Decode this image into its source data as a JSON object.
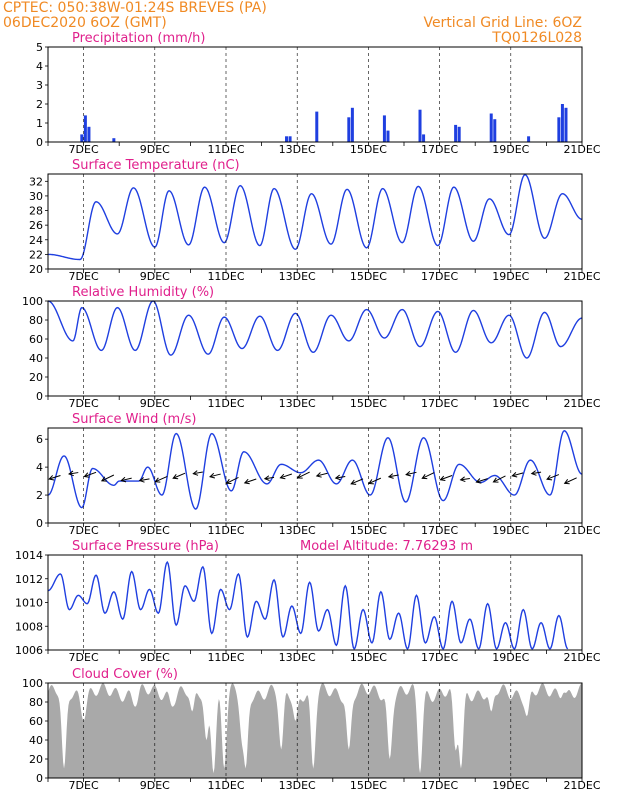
{
  "header": {
    "line1_left": "CPTEC:  050:38W-01:24S  BREVES (PA)",
    "line2_left": "06DEC2020 6OZ (GMT)",
    "line1_right": "Vertical Grid Line: 6OZ",
    "line2_right": "TQ0126L028"
  },
  "model_altitude": "Model Altitude: 7.76293 m",
  "colors": {
    "header": "#f08a24",
    "title": "#e0208c",
    "line": "#1f3fe0",
    "cloud": "#a9a9a9"
  },
  "date_labels": [
    "7DEC",
    "9DEC",
    "11DEC",
    "13DEC",
    "15DEC",
    "17DEC",
    "19DEC",
    "21DEC"
  ],
  "chart_data": [
    {
      "type": "bar",
      "title": "Precipitation (mm/h)",
      "y_ticks": [
        "0",
        "1",
        "2",
        "3",
        "4",
        "5"
      ],
      "ylim": [
        0,
        5
      ],
      "x_range": [
        "06DEC2020 06Z",
        "21DEC2020 06Z"
      ],
      "series": [
        {
          "x": [
            0.95,
            1.05,
            1.15,
            1.85,
            6.7,
            6.8,
            7.55,
            8.45,
            8.55,
            9.45,
            9.55,
            10.45,
            10.55,
            11.45,
            11.55,
            12.45,
            12.55,
            13.5,
            14.35,
            14.45,
            14.55
          ],
          "values": [
            0.4,
            1.4,
            0.8,
            0.2,
            0.3,
            0.3,
            1.6,
            1.3,
            1.8,
            1.4,
            0.6,
            1.7,
            0.4,
            0.9,
            0.8,
            1.5,
            1.2,
            0.3,
            1.3,
            2.0,
            1.8
          ]
        }
      ]
    },
    {
      "type": "line",
      "title": "Surface Temperature (nC)",
      "y_ticks": [
        "20",
        "22",
        "24",
        "26",
        "28",
        "30",
        "32"
      ],
      "ylim": [
        20,
        33
      ],
      "x_range": [
        "06DEC2020 06Z",
        "21DEC2020 06Z"
      ],
      "series": [
        {
          "peak_times": [
            1.35,
            2.4,
            3.4,
            4.4,
            5.4,
            6.35,
            7.4,
            8.4,
            9.4,
            10.4,
            11.4,
            12.4,
            13.4,
            14.45
          ],
          "peak_values": [
            29.2,
            31.1,
            30.7,
            31.2,
            31.4,
            31.0,
            30.3,
            30.9,
            31.0,
            31.3,
            31.2,
            29.6,
            32.9,
            30.3
          ],
          "trough_times": [
            0.0,
            0.9,
            1.95,
            3.0,
            3.95,
            4.95,
            5.95,
            6.95,
            7.95,
            8.95,
            9.95,
            10.95,
            11.95,
            12.95,
            13.95,
            15.0
          ],
          "trough_values": [
            22.0,
            21.3,
            24.8,
            23.0,
            23.3,
            23.6,
            23.2,
            22.7,
            23.4,
            22.9,
            23.6,
            23.2,
            23.8,
            24.7,
            24.2,
            26.8
          ]
        }
      ]
    },
    {
      "type": "line",
      "title": "Relative Humidity (%)",
      "y_ticks": [
        "0",
        "20",
        "40",
        "60",
        "80",
        "100"
      ],
      "ylim": [
        0,
        100
      ],
      "x_range": [
        "06DEC2020 06Z",
        "21DEC2020 06Z"
      ],
      "series": [
        {
          "peak_times": [
            0.0,
            0.95,
            1.95,
            2.95,
            3.95,
            4.95,
            5.95,
            6.95,
            7.95,
            8.95,
            9.95,
            10.95,
            11.95,
            12.95,
            13.95,
            15.0
          ],
          "peak_values": [
            100,
            93,
            93,
            100,
            85,
            83,
            84,
            87,
            85,
            91,
            91,
            89,
            90,
            85,
            88,
            82
          ],
          "trough_times": [
            0.7,
            1.5,
            2.45,
            3.45,
            4.5,
            5.45,
            6.45,
            7.45,
            8.45,
            9.45,
            10.45,
            11.45,
            12.45,
            13.45,
            14.4
          ],
          "trough_values": [
            58,
            48,
            48,
            43,
            44,
            50,
            48,
            46,
            58,
            61,
            52,
            46,
            56,
            40,
            52
          ]
        }
      ]
    },
    {
      "type": "line",
      "title": "Surface Wind (m/s)",
      "y_ticks": [
        "0",
        "2",
        "4",
        "6"
      ],
      "ylim": [
        0,
        6.8
      ],
      "x_range": [
        "06DEC2020 06Z",
        "21DEC2020 06Z"
      ],
      "series": [
        {
          "peak_times": [
            0.45,
            1.25,
            2.0,
            2.8,
            3.6,
            4.6,
            5.5,
            6.55,
            7.6,
            8.55,
            9.55,
            10.55,
            11.55,
            12.55,
            13.55,
            14.5
          ],
          "peak_values": [
            4.8,
            3.9,
            3.0,
            4.0,
            6.4,
            6.4,
            5.1,
            4.2,
            4.5,
            4.5,
            6.1,
            6.1,
            4.2,
            3.4,
            4.5,
            6.6
          ],
          "trough_times": [
            0.0,
            0.95,
            1.85,
            2.55,
            3.2,
            4.15,
            5.15,
            6.15,
            7.1,
            8.1,
            9.05,
            10.05,
            11.1,
            12.15,
            13.1,
            14.1,
            15.0
          ],
          "trough_values": [
            2.0,
            1.1,
            2.7,
            3.0,
            2.0,
            1.0,
            2.3,
            2.8,
            3.6,
            2.8,
            2.0,
            1.5,
            1.6,
            2.9,
            2.0,
            2.0,
            3.5
          ]
        }
      ]
    },
    {
      "type": "line",
      "title": "Surface Pressure (hPa)",
      "y_ticks": [
        "1006",
        "1008",
        "1010",
        "1012",
        "1014"
      ],
      "ylim": [
        1006,
        1014
      ],
      "x_range": [
        "06DEC2020 06Z",
        "21DEC2020 06Z"
      ],
      "series": [
        {
          "peak_times": [
            0.35,
            0.85,
            1.35,
            1.85,
            2.35,
            2.85,
            3.35,
            3.85,
            4.35,
            4.85,
            5.35,
            5.85,
            6.35,
            6.85,
            7.35,
            7.85,
            8.35,
            8.85,
            9.35,
            9.85,
            10.35,
            10.85,
            11.35,
            11.85,
            12.35,
            12.85,
            13.35,
            13.85,
            14.35
          ],
          "peak_values": [
            1012.4,
            1010.6,
            1012.3,
            1010.9,
            1012.6,
            1011.1,
            1013.4,
            1011.4,
            1013.0,
            1011.1,
            1012.4,
            1010.1,
            1011.9,
            1009.7,
            1011.7,
            1009.4,
            1011.4,
            1009.4,
            1010.9,
            1009.1,
            1010.6,
            1008.8,
            1010.1,
            1008.6,
            1009.9,
            1008.3,
            1009.4,
            1008.3,
            1008.9
          ],
          "trough_times": [
            0.0,
            0.6,
            1.1,
            1.6,
            2.1,
            2.6,
            3.1,
            3.6,
            4.1,
            4.6,
            5.1,
            5.6,
            6.1,
            6.6,
            7.1,
            7.6,
            8.1,
            8.6,
            9.1,
            9.6,
            10.1,
            10.6,
            11.1,
            11.6,
            12.1,
            12.6,
            13.1,
            13.6,
            14.1,
            14.6
          ],
          "trough_values": [
            1011.0,
            1009.4,
            1009.9,
            1009.1,
            1008.6,
            1009.4,
            1009.1,
            1008.1,
            1010.1,
            1007.4,
            1009.4,
            1007.1,
            1008.6,
            1007.1,
            1007.4,
            1007.6,
            1006.4,
            1006.1,
            1006.6,
            1006.9,
            1006.1,
            1006.6,
            1006.1,
            1006.6,
            1006.1,
            1006.1,
            1006.1,
            1006.1,
            1006.1,
            1006.1
          ]
        }
      ]
    },
    {
      "type": "area",
      "title": "Cloud Cover (%)",
      "y_ticks": [
        "0",
        "20",
        "40",
        "60",
        "80",
        "100"
      ],
      "ylim": [
        0,
        100
      ],
      "x_range": [
        "06DEC2020 06Z",
        "21DEC2020 06Z"
      ],
      "series": [
        {
          "base_level": 90,
          "dips": [
            {
              "day": 0.45,
              "value": 10
            },
            {
              "day": 1.0,
              "value": 60
            },
            {
              "day": 2.45,
              "value": 75
            },
            {
              "day": 3.5,
              "value": 75
            },
            {
              "day": 4.05,
              "value": 70
            },
            {
              "day": 4.45,
              "value": 40
            },
            {
              "day": 4.65,
              "value": 5
            },
            {
              "day": 4.95,
              "value": 10
            },
            {
              "day": 5.45,
              "value": 45
            },
            {
              "day": 5.55,
              "value": 10
            },
            {
              "day": 6.55,
              "value": 30
            },
            {
              "day": 6.95,
              "value": 60
            },
            {
              "day": 7.45,
              "value": 10
            },
            {
              "day": 8.45,
              "value": 30
            },
            {
              "day": 9.6,
              "value": 20
            },
            {
              "day": 10.45,
              "value": 5
            },
            {
              "day": 11.45,
              "value": 30
            },
            {
              "day": 11.6,
              "value": 10
            },
            {
              "day": 12.45,
              "value": 70
            },
            {
              "day": 13.45,
              "value": 65
            },
            {
              "day": 14.5,
              "value": 90
            }
          ]
        }
      ]
    }
  ]
}
